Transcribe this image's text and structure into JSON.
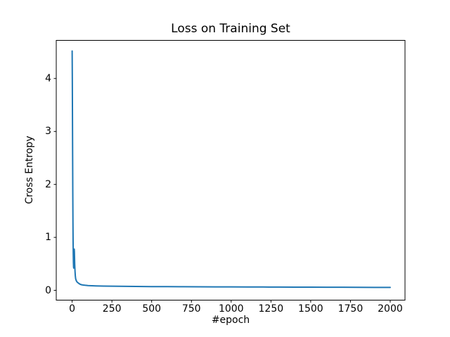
{
  "figure": {
    "background": "#ffffff",
    "text_color": "#000000",
    "spine_color": "#000000"
  },
  "chart_data": {
    "type": "line",
    "title": "Loss on Training Set",
    "xlabel": "#epoch",
    "ylabel": "Cross Entropy",
    "xlim": [
      -100,
      2093
    ],
    "ylim": [
      -0.185,
      4.72
    ],
    "xticks": [
      0,
      250,
      500,
      750,
      1000,
      1250,
      1500,
      1750,
      2000
    ],
    "yticks": [
      0,
      1,
      2,
      3,
      4
    ],
    "grid": false,
    "legend": "none",
    "series": [
      {
        "name": "training-loss",
        "color": "#1f77b4",
        "x": [
          0,
          1,
          2,
          3,
          4,
          5,
          6,
          7,
          8,
          9,
          10,
          11,
          12,
          13,
          14,
          15,
          16,
          18,
          20,
          22,
          25,
          28,
          32,
          36,
          40,
          45,
          50,
          60,
          70,
          80,
          100,
          125,
          150,
          200,
          250,
          300,
          400,
          500,
          600,
          700,
          800,
          900,
          1000,
          1100,
          1200,
          1300,
          1400,
          1500,
          1600,
          1700,
          1800,
          1900,
          2000
        ],
        "y": [
          4.52,
          4.0,
          3.3,
          2.55,
          1.85,
          1.3,
          0.92,
          0.68,
          0.52,
          0.44,
          0.42,
          0.5,
          0.66,
          0.78,
          0.74,
          0.62,
          0.5,
          0.36,
          0.27,
          0.22,
          0.19,
          0.17,
          0.155,
          0.145,
          0.135,
          0.125,
          0.115,
          0.105,
          0.1,
          0.096,
          0.09,
          0.086,
          0.083,
          0.08,
          0.078,
          0.076,
          0.073,
          0.071,
          0.07,
          0.068,
          0.067,
          0.066,
          0.065,
          0.064,
          0.063,
          0.062,
          0.061,
          0.06,
          0.059,
          0.058,
          0.057,
          0.056,
          0.055
        ]
      }
    ]
  }
}
